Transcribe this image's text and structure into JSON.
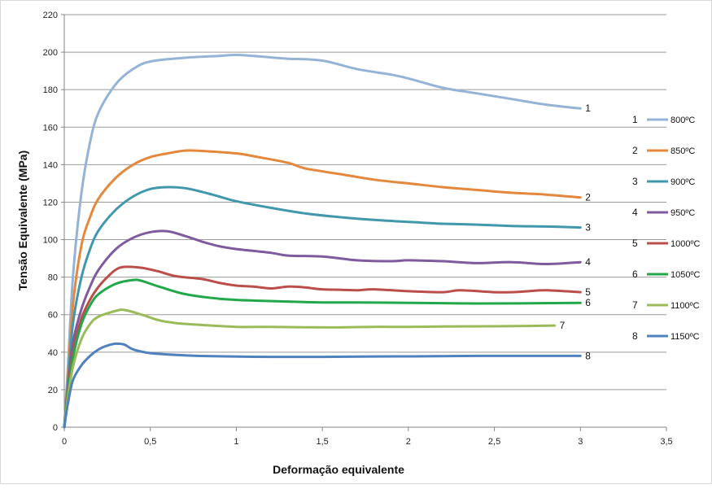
{
  "chart_data": {
    "type": "line",
    "title": "",
    "xlabel": "Deformação equivalente",
    "ylabel": "Tensão Equivalente (MPa)",
    "xlim": [
      0,
      3.5
    ],
    "ylim": [
      0,
      220
    ],
    "x_ticks": [
      0,
      0.5,
      1,
      1.5,
      2,
      2.5,
      3,
      3.5
    ],
    "x_tick_labels": [
      "0",
      "0,5",
      "1",
      "1,5",
      "2",
      "2,5",
      "3",
      "3,5"
    ],
    "y_ticks": [
      0,
      20,
      40,
      60,
      80,
      100,
      120,
      140,
      160,
      180,
      200,
      220
    ],
    "y_tick_labels": [
      "0",
      "20",
      "40",
      "60",
      "80",
      "100",
      "120",
      "140",
      "160",
      "180",
      "200",
      "220"
    ],
    "grid": "horizontal",
    "legend_position": "right",
    "series": [
      {
        "name": "800ºC",
        "id": "1",
        "color": "#95b3d7",
        "points": [
          [
            0,
            0
          ],
          [
            0.02,
            30
          ],
          [
            0.05,
            80
          ],
          [
            0.1,
            125
          ],
          [
            0.15,
            152
          ],
          [
            0.2,
            168
          ],
          [
            0.3,
            183
          ],
          [
            0.4,
            191
          ],
          [
            0.5,
            195
          ],
          [
            0.7,
            197
          ],
          [
            0.9,
            198
          ],
          [
            1.0,
            198.5
          ],
          [
            1.1,
            198
          ],
          [
            1.2,
            197.2
          ],
          [
            1.3,
            196.5
          ],
          [
            1.5,
            195.5
          ],
          [
            1.7,
            191
          ],
          [
            1.9,
            188
          ],
          [
            2.0,
            186
          ],
          [
            2.2,
            181
          ],
          [
            2.4,
            178
          ],
          [
            2.6,
            175
          ],
          [
            2.8,
            172
          ],
          [
            3.0,
            170
          ]
        ]
      },
      {
        "name": "850ºC",
        "id": "2",
        "color": "#e3883c",
        "points": [
          [
            0,
            0
          ],
          [
            0.02,
            25
          ],
          [
            0.05,
            65
          ],
          [
            0.1,
            97
          ],
          [
            0.15,
            112
          ],
          [
            0.2,
            122
          ],
          [
            0.3,
            133
          ],
          [
            0.4,
            140
          ],
          [
            0.5,
            144
          ],
          [
            0.6,
            146
          ],
          [
            0.7,
            147.5
          ],
          [
            0.8,
            147.3
          ],
          [
            1.0,
            146
          ],
          [
            1.1,
            144.5
          ],
          [
            1.3,
            141
          ],
          [
            1.4,
            138
          ],
          [
            1.6,
            135
          ],
          [
            1.8,
            132
          ],
          [
            2.0,
            130
          ],
          [
            2.2,
            128
          ],
          [
            2.4,
            126.5
          ],
          [
            2.6,
            125
          ],
          [
            2.8,
            124
          ],
          [
            3.0,
            122.5
          ]
        ]
      },
      {
        "name": "900ºC",
        "id": "3",
        "color": "#4198ad",
        "points": [
          [
            0,
            0
          ],
          [
            0.02,
            22
          ],
          [
            0.05,
            55
          ],
          [
            0.1,
            80
          ],
          [
            0.15,
            95
          ],
          [
            0.2,
            105
          ],
          [
            0.3,
            116
          ],
          [
            0.4,
            123
          ],
          [
            0.5,
            127
          ],
          [
            0.6,
            128
          ],
          [
            0.7,
            127.5
          ],
          [
            0.8,
            125.5
          ],
          [
            0.9,
            123
          ],
          [
            1.0,
            120.5
          ],
          [
            1.2,
            117
          ],
          [
            1.4,
            114
          ],
          [
            1.6,
            112
          ],
          [
            1.8,
            110.5
          ],
          [
            2.0,
            109.5
          ],
          [
            2.2,
            108.5
          ],
          [
            2.4,
            108
          ],
          [
            2.6,
            107.3
          ],
          [
            2.8,
            107
          ],
          [
            3.0,
            106.5
          ]
        ]
      },
      {
        "name": "950ºC",
        "id": "4",
        "color": "#7e5b9e",
        "points": [
          [
            0,
            0
          ],
          [
            0.02,
            20
          ],
          [
            0.05,
            45
          ],
          [
            0.1,
            63
          ],
          [
            0.15,
            75
          ],
          [
            0.2,
            84
          ],
          [
            0.3,
            95
          ],
          [
            0.4,
            101
          ],
          [
            0.5,
            104
          ],
          [
            0.6,
            104.5
          ],
          [
            0.7,
            102
          ],
          [
            0.8,
            99
          ],
          [
            0.9,
            96.5
          ],
          [
            1.0,
            95
          ],
          [
            1.2,
            93
          ],
          [
            1.3,
            91.5
          ],
          [
            1.5,
            91
          ],
          [
            1.7,
            89
          ],
          [
            1.9,
            88.5
          ],
          [
            2.0,
            89
          ],
          [
            2.2,
            88.5
          ],
          [
            2.4,
            87.5
          ],
          [
            2.6,
            88
          ],
          [
            2.8,
            87
          ],
          [
            3.0,
            88
          ]
        ]
      },
      {
        "name": "1000ºC",
        "id": "5",
        "color": "#bb4e4a",
        "points": [
          [
            0,
            0
          ],
          [
            0.02,
            18
          ],
          [
            0.05,
            40
          ],
          [
            0.1,
            58
          ],
          [
            0.15,
            68
          ],
          [
            0.2,
            75
          ],
          [
            0.25,
            80
          ],
          [
            0.3,
            84
          ],
          [
            0.35,
            85.5
          ],
          [
            0.45,
            85
          ],
          [
            0.55,
            83
          ],
          [
            0.65,
            80.5
          ],
          [
            0.8,
            79
          ],
          [
            0.9,
            77
          ],
          [
            1.0,
            75.5
          ],
          [
            1.1,
            75
          ],
          [
            1.2,
            74
          ],
          [
            1.3,
            75
          ],
          [
            1.4,
            74.5
          ],
          [
            1.5,
            73.5
          ],
          [
            1.6,
            73.3
          ],
          [
            1.7,
            73
          ],
          [
            1.8,
            73.5
          ],
          [
            2.0,
            72.5
          ],
          [
            2.2,
            72
          ],
          [
            2.3,
            73
          ],
          [
            2.5,
            72
          ],
          [
            2.6,
            72
          ],
          [
            2.7,
            72.5
          ],
          [
            2.8,
            73
          ],
          [
            3.0,
            72
          ]
        ]
      },
      {
        "name": "1050ºC",
        "id": "6",
        "color": "#22a84a",
        "points": [
          [
            0,
            0
          ],
          [
            0.02,
            17
          ],
          [
            0.05,
            37
          ],
          [
            0.1,
            55
          ],
          [
            0.15,
            65
          ],
          [
            0.2,
            71
          ],
          [
            0.3,
            76.5
          ],
          [
            0.4,
            78.5
          ],
          [
            0.45,
            78
          ],
          [
            0.55,
            75
          ],
          [
            0.7,
            71
          ],
          [
            0.9,
            68.5
          ],
          [
            1.1,
            67.5
          ],
          [
            1.3,
            67
          ],
          [
            1.5,
            66.5
          ],
          [
            1.7,
            66.5
          ],
          [
            2.0,
            66.3
          ],
          [
            2.3,
            66
          ],
          [
            2.6,
            66
          ],
          [
            3.0,
            66.3
          ]
        ]
      },
      {
        "name": "1100ºC",
        "id": "7",
        "color": "#9bbb59",
        "points": [
          [
            0,
            0
          ],
          [
            0.02,
            15
          ],
          [
            0.05,
            32
          ],
          [
            0.1,
            47
          ],
          [
            0.15,
            55
          ],
          [
            0.2,
            59
          ],
          [
            0.3,
            62
          ],
          [
            0.35,
            62.5
          ],
          [
            0.45,
            60
          ],
          [
            0.55,
            57
          ],
          [
            0.65,
            55.5
          ],
          [
            0.8,
            54.5
          ],
          [
            1.0,
            53.5
          ],
          [
            1.2,
            53.5
          ],
          [
            1.4,
            53.3
          ],
          [
            1.6,
            53.2
          ],
          [
            1.8,
            53.5
          ],
          [
            2.0,
            53.5
          ],
          [
            2.2,
            53.7
          ],
          [
            2.5,
            53.8
          ],
          [
            2.7,
            54
          ],
          [
            2.85,
            54.2
          ]
        ]
      },
      {
        "name": "1150ºC",
        "id": "8",
        "color": "#4f81bd",
        "points": [
          [
            0,
            0
          ],
          [
            0.02,
            12
          ],
          [
            0.05,
            25
          ],
          [
            0.1,
            33
          ],
          [
            0.15,
            38
          ],
          [
            0.2,
            41.5
          ],
          [
            0.25,
            43.5
          ],
          [
            0.3,
            44.5
          ],
          [
            0.35,
            44
          ],
          [
            0.4,
            41.5
          ],
          [
            0.5,
            39.5
          ],
          [
            0.7,
            38.3
          ],
          [
            0.9,
            37.8
          ],
          [
            1.2,
            37.5
          ],
          [
            1.5,
            37.5
          ],
          [
            1.8,
            37.7
          ],
          [
            2.1,
            37.8
          ],
          [
            2.4,
            38
          ],
          [
            2.7,
            38
          ],
          [
            3.0,
            38
          ]
        ]
      }
    ]
  }
}
